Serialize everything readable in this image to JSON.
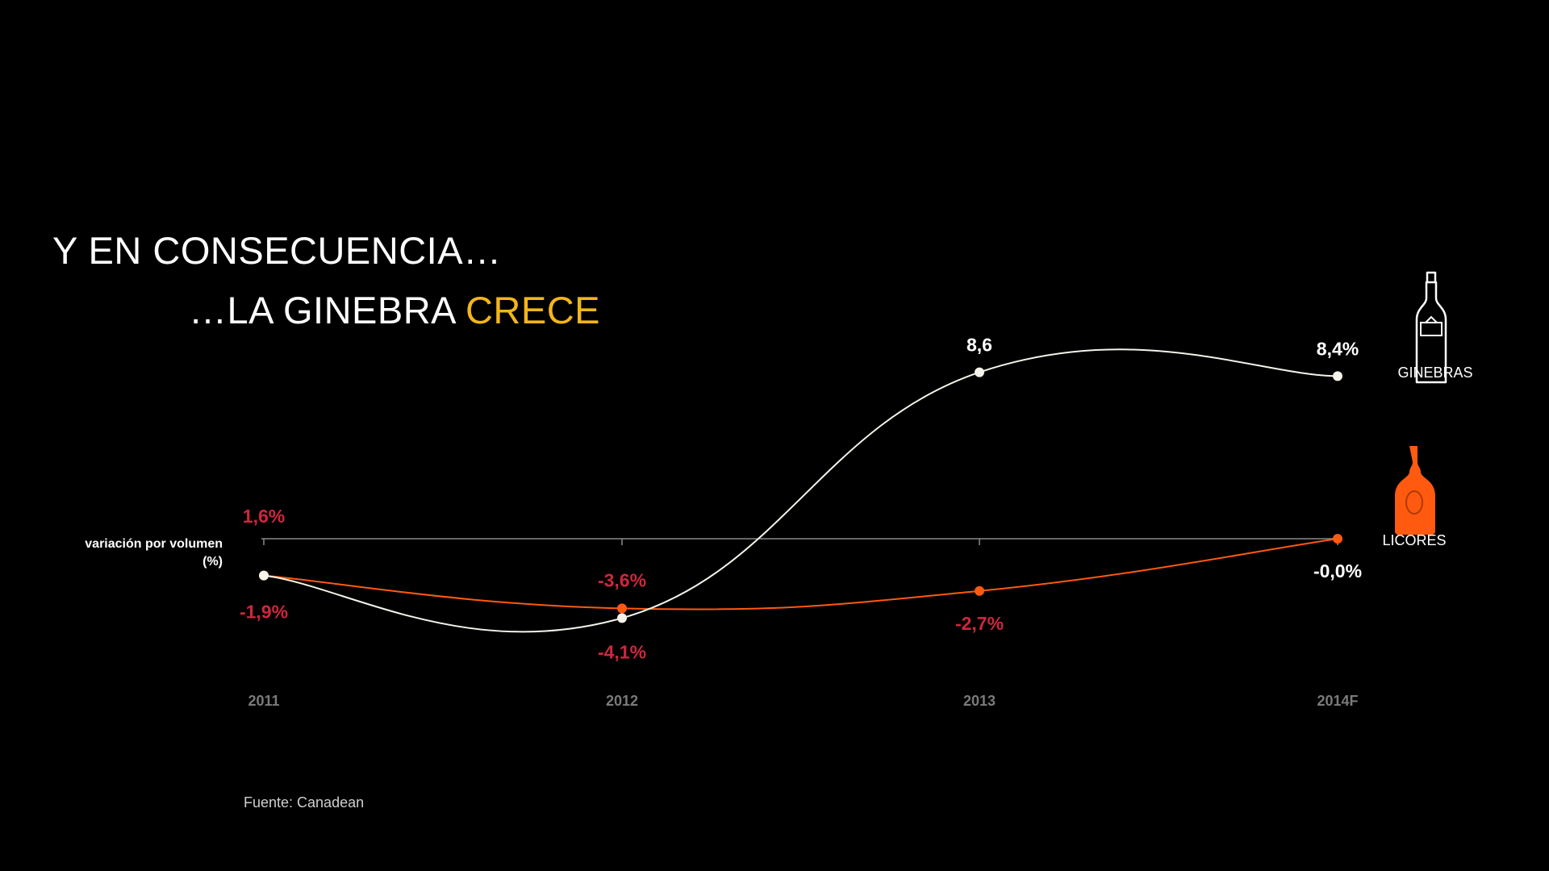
{
  "title": {
    "line1": "Y EN CONSECUENCIA…",
    "line2_prefix": "…LA GINEBRA ",
    "line2_accent": "CRECE"
  },
  "ylabel_line1": "variación por volumen",
  "ylabel_line2": "(%)",
  "source": "Fuente: Canadean",
  "colors": {
    "ginebras": "#f5f3ea",
    "licores": "#ff5a0f",
    "negative_label": "#d0263e",
    "accent": "#f2b51c",
    "axis": "#8a8a8a"
  },
  "icons": {
    "ginebras": "gin-bottle-outline-icon",
    "licores": "liquor-bottle-orange-icon"
  },
  "chart_data": {
    "type": "line",
    "categories": [
      "2011",
      "2012",
      "2013",
      "2014F"
    ],
    "series": [
      {
        "name": "GINEBRAS",
        "values": [
          -1.9,
          -4.1,
          8.6,
          8.4
        ],
        "labels": [
          "",
          "-4,1%",
          "8,6",
          "8,4%"
        ]
      },
      {
        "name": "LICORES",
        "values": [
          -1.9,
          -3.6,
          -2.7,
          0.0
        ],
        "labels": [
          "-1,9%",
          "-3,6%",
          "-2,7%",
          "-0,0%"
        ]
      }
    ],
    "annotations": [
      "1,6%"
    ],
    "ylim": [
      -5,
      10
    ],
    "legend": "right",
    "grid": false
  }
}
